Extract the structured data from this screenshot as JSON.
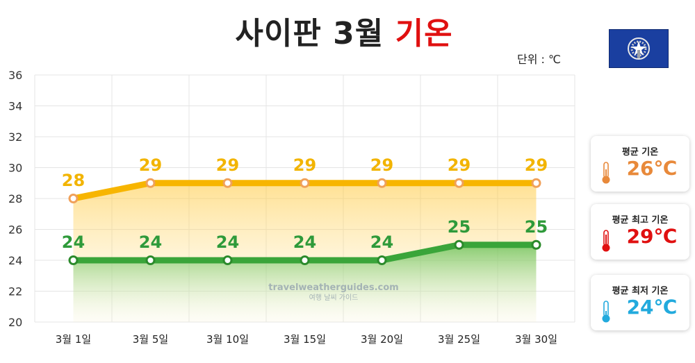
{
  "header": {
    "title_main": "사이판 3월 ",
    "title_accent": "기온",
    "unit": "단위 : ℃"
  },
  "colors": {
    "max_line": "#f7b500",
    "min_line": "#3aa53a",
    "avg": "#e8893a",
    "max_card": "#e01010",
    "min_card": "#22aadd"
  },
  "flag_icon": "northern-mariana-islands-flag-icon",
  "watermark": {
    "line1": "travelweatherguides.com",
    "line2": "여행 날씨 가이드"
  },
  "chart_data": {
    "type": "line",
    "categories": [
      "3월 1일",
      "3월 5일",
      "3월 10일",
      "3월 15일",
      "3월 20일",
      "3월 25일",
      "3월 30일"
    ],
    "series": [
      {
        "key": "max",
        "values": [
          28,
          29,
          29,
          29,
          29,
          29,
          29
        ]
      },
      {
        "key": "min",
        "values": [
          24,
          24,
          24,
          24,
          24,
          25,
          25
        ]
      }
    ],
    "y_ticks": [
      20,
      22,
      24,
      26,
      28,
      30,
      32,
      34,
      36
    ],
    "ylim": [
      20,
      36
    ],
    "grid": true
  },
  "cards": [
    {
      "key": "avg",
      "label": "평균 기온",
      "value": "26℃",
      "icon": "thermometer-orange-icon"
    },
    {
      "key": "max",
      "label": "평균 최고 기온",
      "value": "29℃",
      "icon": "thermometer-red-icon"
    },
    {
      "key": "min",
      "label": "평균 최저 기온",
      "value": "24℃",
      "icon": "thermometer-blue-icon"
    }
  ]
}
